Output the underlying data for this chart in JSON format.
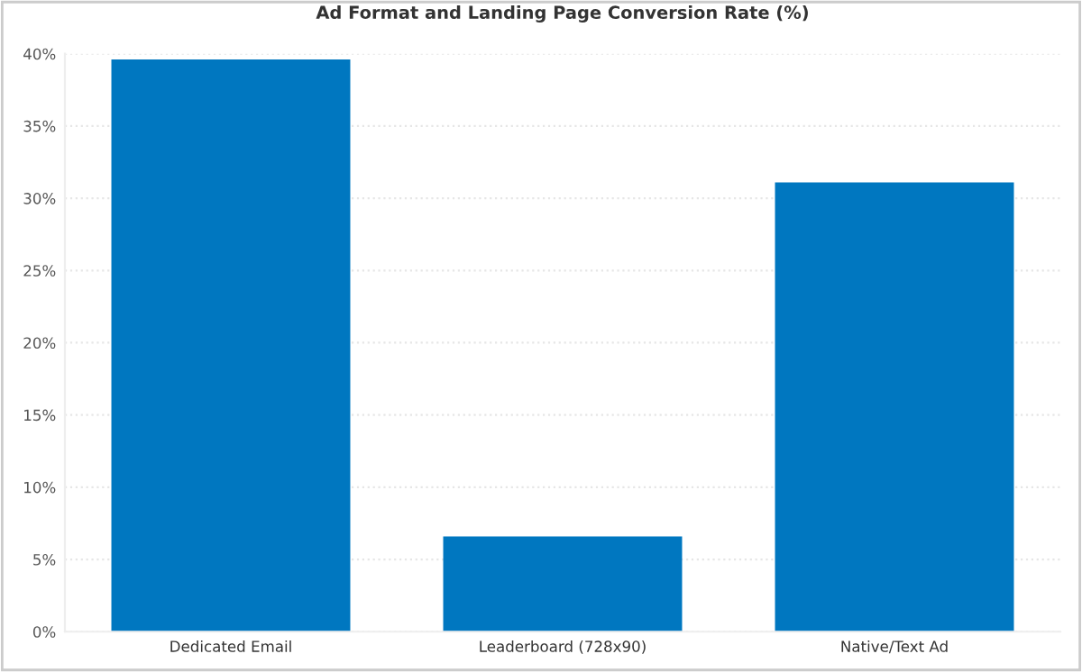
{
  "chart_data": {
    "type": "bar",
    "title": "Ad Format and Landing Page Conversion Rate (%)",
    "categories": [
      "Dedicated Email",
      "Leaderboard (728x90)",
      "Native/Text Ad"
    ],
    "values": [
      39.6,
      6.6,
      31.1
    ],
    "color": "#0077c0",
    "ylim": [
      0,
      40
    ],
    "yticks": [
      {
        "value": 0,
        "label": "0%"
      },
      {
        "value": 5,
        "label": "5%"
      },
      {
        "value": 10,
        "label": "10%"
      },
      {
        "value": 15,
        "label": "15%"
      },
      {
        "value": 20,
        "label": "20%"
      },
      {
        "value": 25,
        "label": "25%"
      },
      {
        "value": 30,
        "label": "30%"
      },
      {
        "value": 35,
        "label": "35%"
      },
      {
        "value": 40,
        "label": "40%"
      }
    ],
    "grid": "y"
  }
}
